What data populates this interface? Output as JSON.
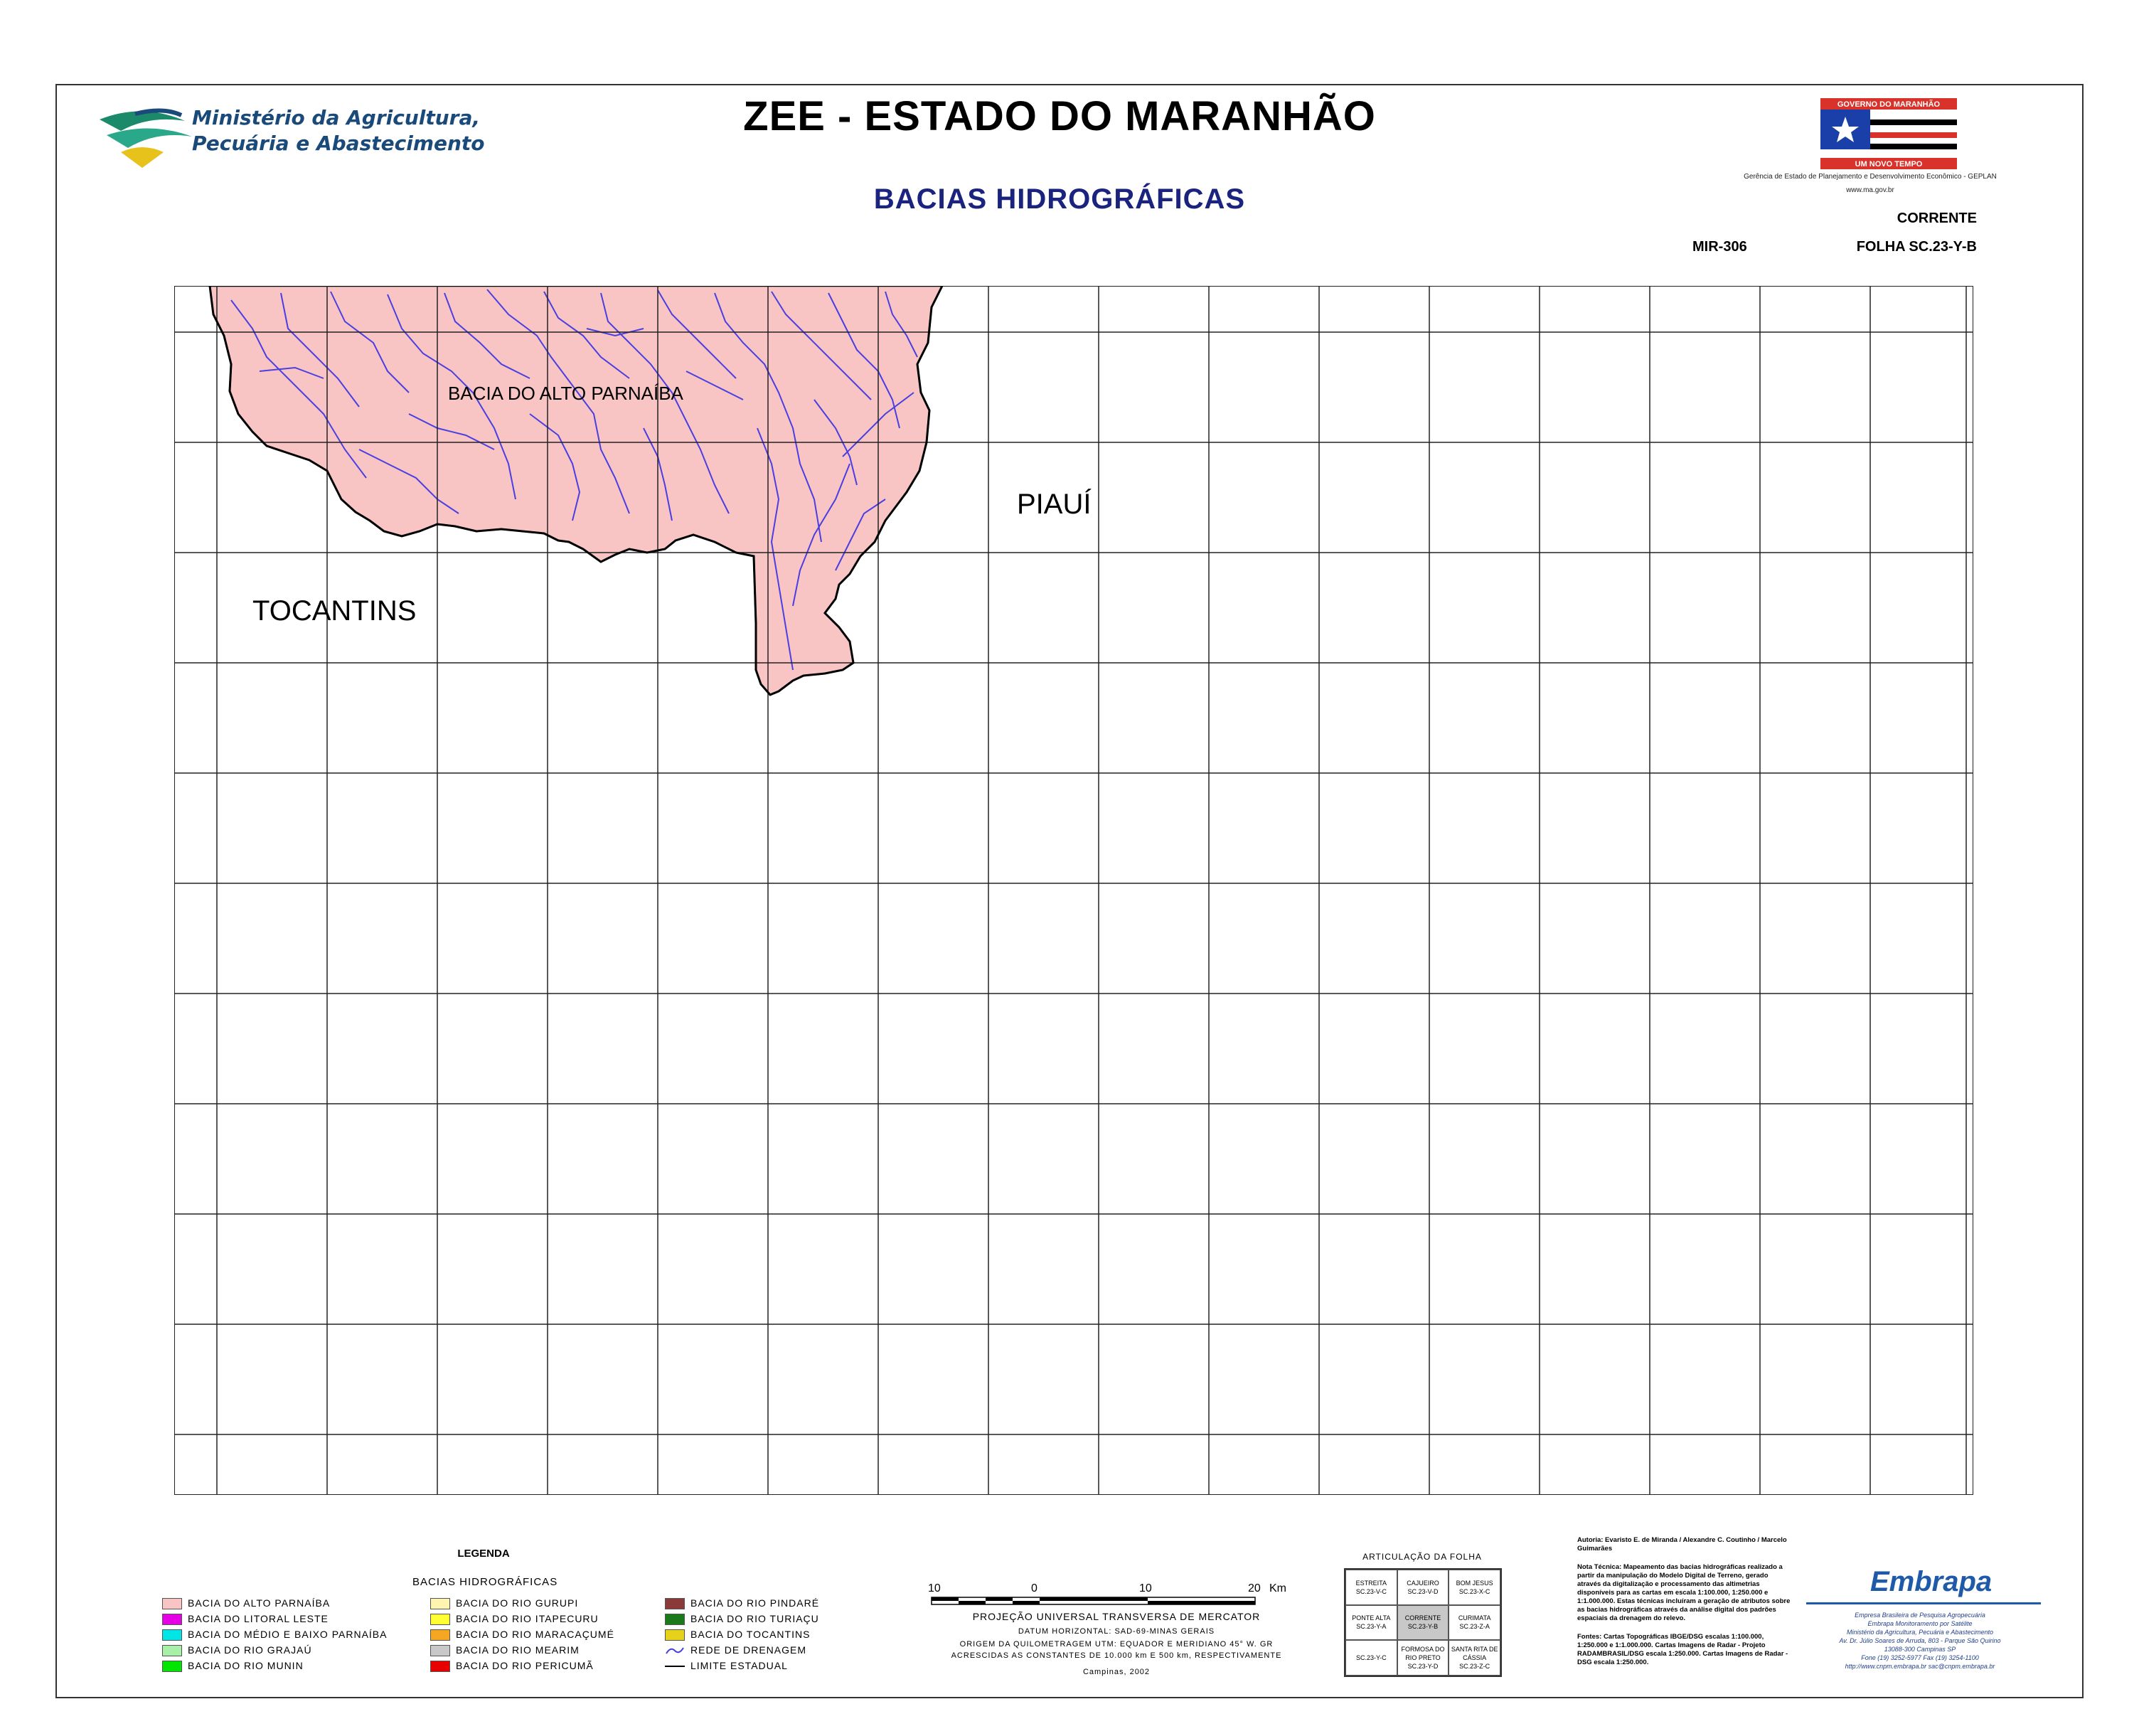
{
  "header": {
    "ministry_line1": "Ministério da Agricultura,",
    "ministry_line2": "Pecuária e Abastecimento",
    "title": "ZEE - ESTADO DO MARANHÃO",
    "subtitle": "BACIAS HIDROGRÁFICAS",
    "gov_logo_top": "GOVERNO DO MARANHÃO",
    "gov_logo_bottom": "UM NOVO TEMPO",
    "geplan": "Gerência de Estado de Planejamento e Desenvolvimento Econômico - GEPLAN",
    "geplan_url": "www.ma.gov.br",
    "sheet_name": "CORRENTE",
    "mir": "MIR-306",
    "folha": "FOLHA SC.23-Y-B"
  },
  "map": {
    "labels": {
      "basin": "BACIA DO ALTO PARNAÍBA",
      "piaui": "PIAUÍ",
      "tocantins": "TOCANTINS"
    },
    "colors": {
      "basin_fill": "#f9c4c4",
      "rivers": "#4a3fe0",
      "grid": "#222222"
    }
  },
  "legend": {
    "title": "LEGENDA",
    "subtitle": "BACIAS HIDROGRÁFICAS",
    "items": [
      {
        "label": "BACIA DO ALTO PARNAÍBA",
        "color": "#f9c4c4"
      },
      {
        "label": "BACIA DO LITORAL LESTE",
        "color": "#e600e6"
      },
      {
        "label": "BACIA DO MÉDIO E BAIXO PARNAÍBA",
        "color": "#00e6e6"
      },
      {
        "label": "BACIA DO RIO GRAJAÚ",
        "color": "#a8f0a8"
      },
      {
        "label": "BACIA DO RIO MUNIN",
        "color": "#00e600"
      },
      {
        "label": "BACIA DO RIO GURUPI",
        "color": "#fff5b0"
      },
      {
        "label": "BACIA DO RIO ITAPECURU",
        "color": "#ffff33"
      },
      {
        "label": "BACIA DO RIO MARACAÇUMÉ",
        "color": "#f5a623"
      },
      {
        "label": "BACIA DO RIO MEARIM",
        "color": "#c8c8c8"
      },
      {
        "label": "BACIA DO RIO PERICUMÃ",
        "color": "#e60000"
      },
      {
        "label": "BACIA DO RIO PINDARÉ",
        "color": "#8b3a3a"
      },
      {
        "label": "BACIA DO RIO TURIAÇU",
        "color": "#1a7a1a"
      },
      {
        "label": "BACIA DO TOCANTINS",
        "color": "#e6d21a"
      },
      {
        "label": "REDE DE DRENAGEM",
        "color": "#4a3fe0"
      },
      {
        "label": "LIMITE ESTADUAL",
        "color": "#000000"
      }
    ]
  },
  "scale": {
    "labels": [
      "10",
      "0",
      "10",
      "20"
    ],
    "unit": "Km",
    "projection": "PROJEÇÃO UNIVERSAL TRANSVERSA DE MERCATOR",
    "datum": "DATUM HORIZONTAL: SAD-69-MINAS GERAIS",
    "origem": "ORIGEM DA QUILOMETRAGEM UTM: EQUADOR E MERIDIANO 45° W. GR",
    "acrescidas": "ACRESCIDAS AS CONSTANTES DE 10.000 km E 500 km, RESPECTIVAMENTE",
    "place_date": "Campinas, 2002"
  },
  "articulacao": {
    "title": "ARTICULAÇÃO DA FOLHA",
    "cells": [
      {
        "l1": "ESTREITA",
        "l2": "SC.23-V-C"
      },
      {
        "l1": "CAJUEIRO",
        "l2": "SC.23-V-D"
      },
      {
        "l1": "BOM JESUS",
        "l2": "SC.23-X-C"
      },
      {
        "l1": "PONTE ALTA",
        "l2": "SC.23-Y-A"
      },
      {
        "l1": "CORRENTE",
        "l2": "SC.23-Y-B"
      },
      {
        "l1": "CURIMATA",
        "l2": "SC.23-Z-A"
      },
      {
        "l1": "",
        "l2": "SC.23-Y-C"
      },
      {
        "l1": "FORMOSA DO RIO PRETO",
        "l2": "SC.23-Y-D"
      },
      {
        "l1": "SANTA RITA DE CÁSSIA",
        "l2": "SC.23-Z-C"
      }
    ]
  },
  "notes": {
    "authors": "Autoria: Evaristo E. de Miranda / Alexandre C. Coutinho / Marcelo Guimarães",
    "nota": "Nota Técnica: Mapeamento das bacias hidrográficas realizado a partir da manipulação do Modelo Digital de Terreno, gerado através da digitalização e processamento das altimetrias disponíveis para as cartas em escala 1:100.000, 1:250.000 e 1:1.000.000. Estas técnicas incluíram a geração de atributos sobre as bacias hidrográficas através da análise digital dos padrões espaciais da drenagem do relevo.",
    "fontes": "Fontes: Cartas Topográficas IBGE/DSG escalas 1:100.000, 1:250.000 e 1:1.000.000. Cartas Imagens de Radar - Projeto RADAMBRASIL/DSG escala 1:250.000. Cartas Imagens de Radar - DSG escala 1:250.000."
  },
  "embrapa": {
    "name": "Embrapa",
    "line1": "Empresa Brasileira de Pesquisa Agropecuária",
    "line2": "Embrapa Monitoramento por Satélite",
    "line3": "Ministério da Agricultura, Pecuária e Abastecimento",
    "line4": "Av. Dr. Júlio Soares de Arruda, 803 - Parque São Quirino",
    "line5": "13088-300 Campinas SP",
    "line6": "Fone (19) 3252-5977 Fax (19) 3254-1100",
    "line7": "http://www.cnpm.embrapa.br  sac@cnpm.embrapa.br"
  }
}
